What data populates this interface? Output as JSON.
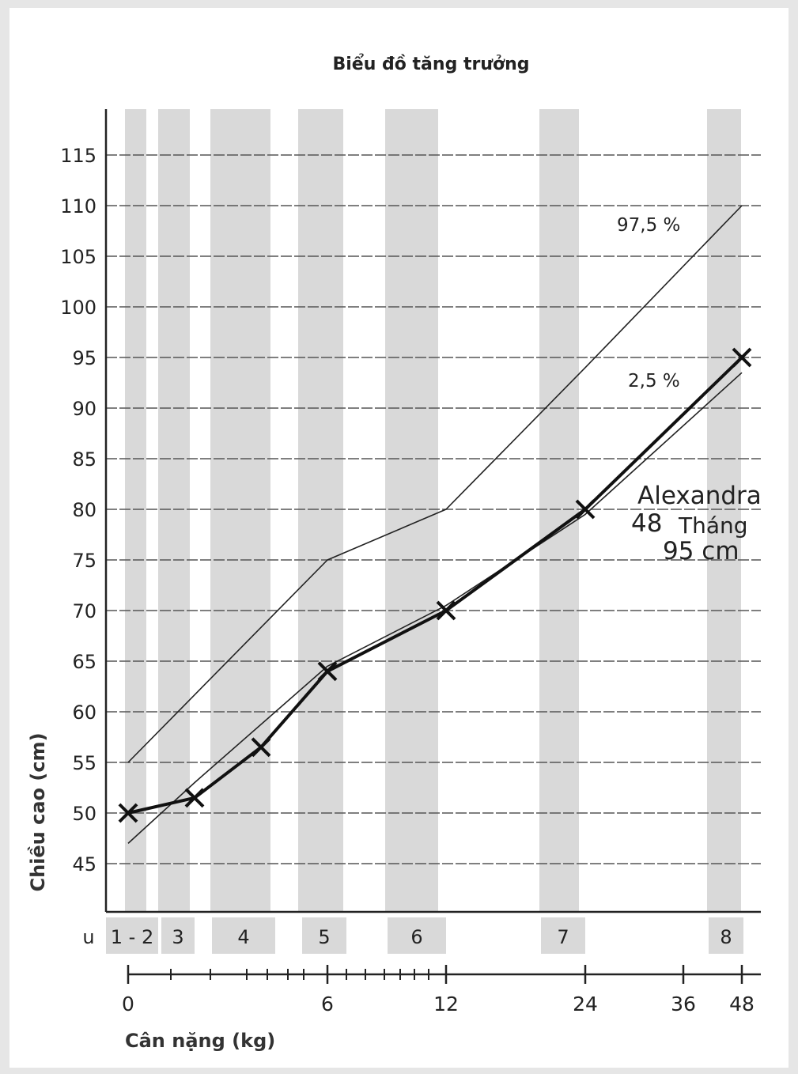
{
  "chart_data": {
    "type": "line",
    "title": "Biểu đồ tăng trưởng",
    "ylabel": "Chiều cao (cm)",
    "xlabel": "Cân nặng (kg)",
    "ylim": [
      40,
      120
    ],
    "y_ticks": [
      45,
      50,
      55,
      60,
      65,
      70,
      75,
      80,
      85,
      90,
      95,
      100,
      105,
      110,
      115
    ],
    "x_ticks": [
      "0",
      "6",
      "12",
      "24",
      "36",
      "48"
    ],
    "band_prefix": "u",
    "bands": [
      "1 - 2",
      "3",
      "4",
      "5",
      "6",
      "7",
      "8"
    ],
    "series": [
      {
        "name": "97,5 %",
        "x": [
          0,
          6,
          12,
          24,
          48
        ],
        "y": [
          55,
          75,
          80,
          94,
          110
        ]
      },
      {
        "name": "2,5 %",
        "x": [
          0,
          2,
          6,
          12,
          24,
          48
        ],
        "y": [
          47,
          53,
          64.5,
          70.5,
          79.5,
          93.5
        ]
      },
      {
        "name": "Alexandra",
        "x": [
          0,
          2,
          4,
          6,
          12,
          24,
          48
        ],
        "y": [
          50,
          51.5,
          56.5,
          64,
          70,
          80,
          95
        ]
      }
    ],
    "annotation": {
      "name": "Alexandra",
      "age": "48",
      "age_unit": "Tháng",
      "height": "95 cm"
    }
  }
}
